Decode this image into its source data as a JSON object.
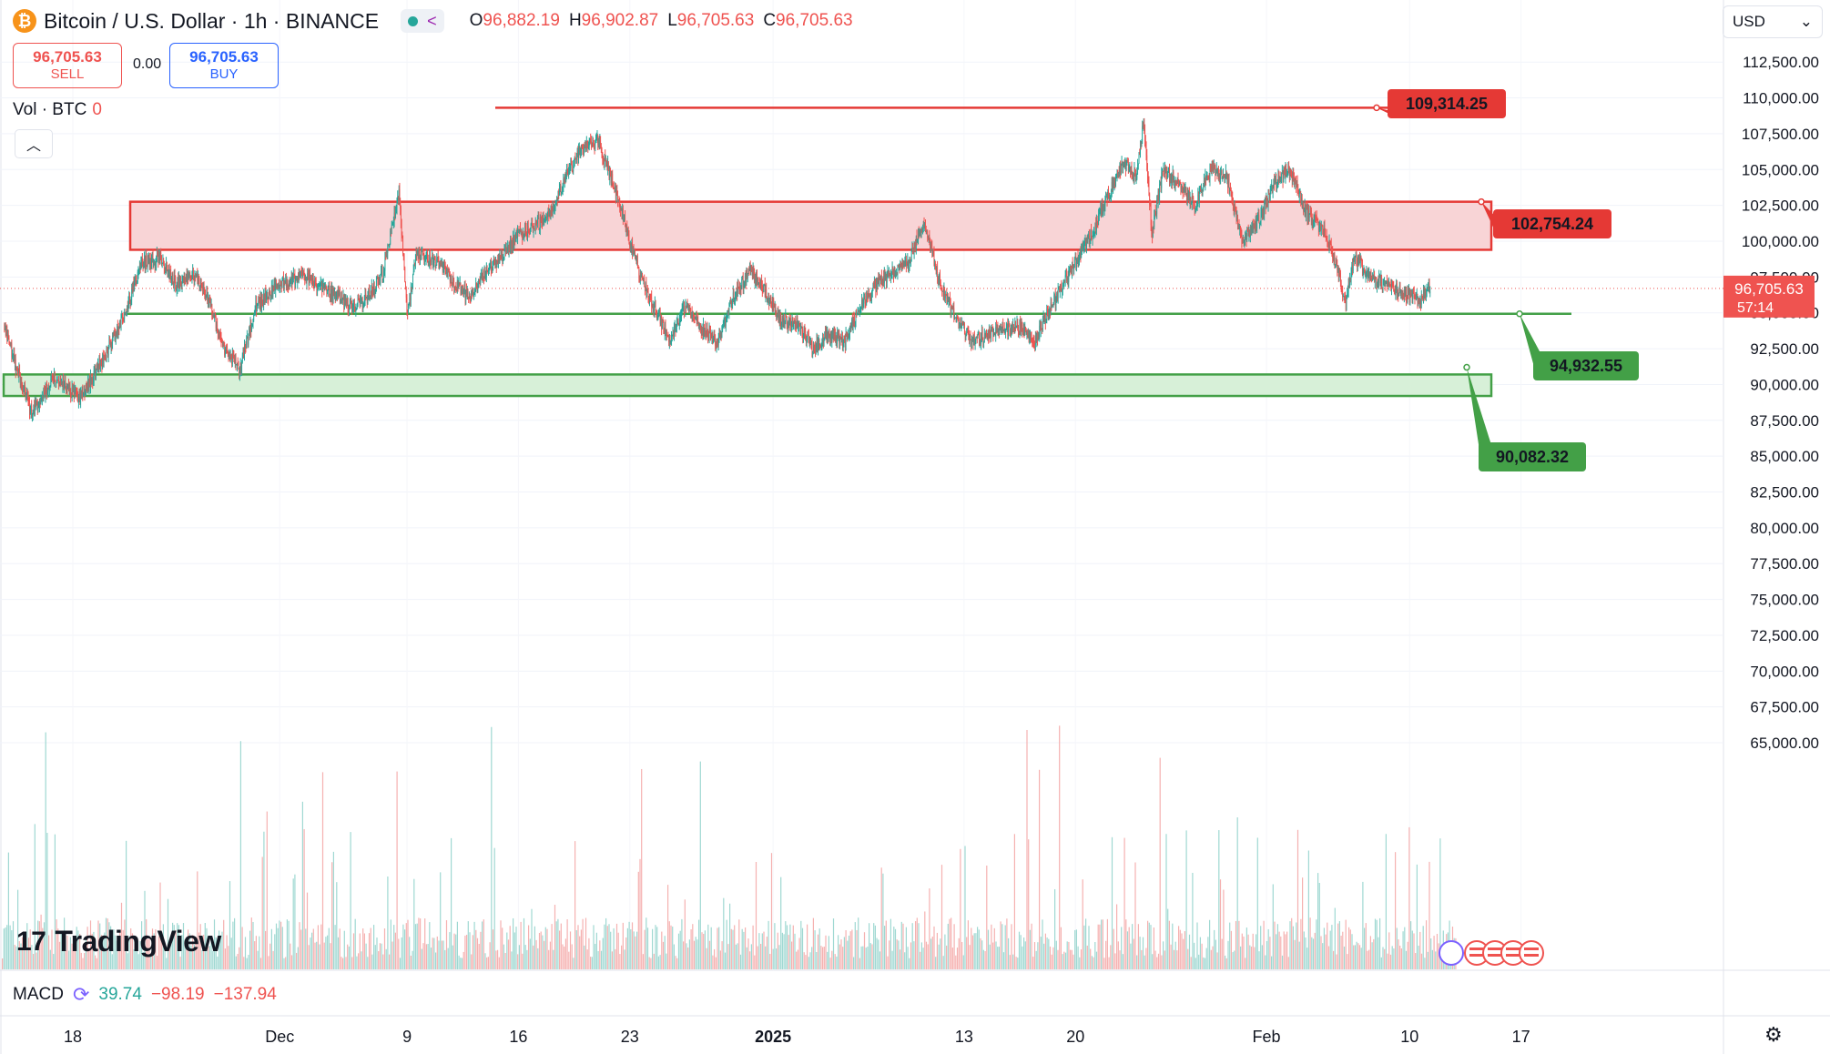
{
  "header": {
    "symbol": "Bitcoin / U.S. Dollar · 1h · BINANCE",
    "logo_glyph": "₿",
    "ohlc": [
      {
        "k": "O",
        "v": "96,882.19"
      },
      {
        "k": "H",
        "v": "96,902.87"
      },
      {
        "k": "L",
        "v": "96,705.63"
      },
      {
        "k": "C",
        "v": "96,705.63"
      }
    ]
  },
  "trade": {
    "sell_price": "96,705.63",
    "sell_label": "SELL",
    "spread": "0.00",
    "buy_price": "96,705.63",
    "buy_label": "BUY"
  },
  "volume_legend": {
    "label": "Vol · BTC",
    "value": "0"
  },
  "currency": {
    "value": "USD"
  },
  "macd": {
    "label": "MACD",
    "v1": "39.74",
    "v2": "−98.19",
    "v3": "−137.94"
  },
  "brand": {
    "name": "TradingView",
    "mark": "17"
  },
  "icons": {
    "collapse": "chevron-up-icon",
    "settings": "gear-icon",
    "share": "share-icon"
  },
  "colors": {
    "up": "#26a69a",
    "down": "#ef5350",
    "resistance": "#e53935",
    "support": "#43a047",
    "zone_red_fill": "#f8d4d6",
    "zone_green_fill": "#d7f0d8"
  },
  "chart_data": {
    "type": "candlestick",
    "timeframe": "1h",
    "ylim": [
      63800,
      114500
    ],
    "y_ticks": [
      65000,
      67500,
      70000,
      72500,
      75000,
      77500,
      80000,
      82500,
      85000,
      87500,
      90000,
      92500,
      95000,
      97500,
      100000,
      102500,
      105000,
      107500,
      110000,
      112500
    ],
    "y_tick_labels": [
      "65,000.00",
      "67,500.00",
      "70,000.00",
      "72,500.00",
      "75,000.00",
      "77,500.00",
      "80,000.00",
      "82,500.00",
      "85,000.00",
      "87,500.00",
      "90,000.00",
      "92,500.00",
      "95,000.00",
      "97,500.00",
      "100,000.00",
      "102,500.00",
      "105,000.00",
      "107,500.00",
      "110,000.00",
      "112,500.00"
    ],
    "x_ticks": [
      {
        "label": "18",
        "day": 0,
        "bold": false
      },
      {
        "label": "Dec",
        "day": 13,
        "bold": false
      },
      {
        "label": "9",
        "day": 21,
        "bold": false
      },
      {
        "label": "16",
        "day": 28,
        "bold": false
      },
      {
        "label": "23",
        "day": 35,
        "bold": false
      },
      {
        "label": "2025",
        "day": 44,
        "bold": true
      },
      {
        "label": "13",
        "day": 56,
        "bold": false
      },
      {
        "label": "20",
        "day": 63,
        "bold": false
      },
      {
        "label": "Feb",
        "day": 75,
        "bold": false
      },
      {
        "label": "10",
        "day": 84,
        "bold": false
      },
      {
        "label": "17",
        "day": 91,
        "bold": false
      }
    ],
    "price_path": [
      [
        -4.3,
        94200
      ],
      [
        -3.5,
        91000
      ],
      [
        -2.6,
        88000
      ],
      [
        -1.2,
        90500
      ],
      [
        0.5,
        89000
      ],
      [
        2,
        92000
      ],
      [
        3.3,
        95000
      ],
      [
        4.3,
        98500
      ],
      [
        5.5,
        98800
      ],
      [
        6.5,
        97000
      ],
      [
        7.5,
        97800
      ],
      [
        8.5,
        96000
      ],
      [
        9.5,
        92500
      ],
      [
        10.5,
        91000
      ],
      [
        11.5,
        95500
      ],
      [
        13,
        97000
      ],
      [
        14.5,
        97500
      ],
      [
        16,
        96500
      ],
      [
        17.5,
        95500
      ],
      [
        18.5,
        96000
      ],
      [
        19.5,
        97800
      ],
      [
        20.5,
        103500
      ],
      [
        21,
        95000
      ],
      [
        21.6,
        99000
      ],
      [
        23,
        98500
      ],
      [
        24,
        97000
      ],
      [
        25,
        96000
      ],
      [
        26,
        98000
      ],
      [
        27,
        99000
      ],
      [
        28,
        100500
      ],
      [
        29,
        101000
      ],
      [
        30,
        102000
      ],
      [
        31,
        104500
      ],
      [
        32,
        106500
      ],
      [
        33,
        107000
      ],
      [
        33.8,
        104500
      ],
      [
        34.5,
        102000
      ],
      [
        35.5,
        98000
      ],
      [
        36.5,
        95500
      ],
      [
        37.5,
        93000
      ],
      [
        38.5,
        95500
      ],
      [
        39.5,
        94000
      ],
      [
        40.5,
        93000
      ],
      [
        41.5,
        96000
      ],
      [
        42.5,
        98000
      ],
      [
        43.5,
        96500
      ],
      [
        44.5,
        94500
      ],
      [
        45.5,
        94200
      ],
      [
        46.5,
        92500
      ],
      [
        47.5,
        93500
      ],
      [
        48.5,
        93000
      ],
      [
        49.5,
        95500
      ],
      [
        50.5,
        97000
      ],
      [
        51.5,
        97800
      ],
      [
        52.5,
        98500
      ],
      [
        53.5,
        101500
      ],
      [
        54.5,
        97000
      ],
      [
        55.5,
        94500
      ],
      [
        56.5,
        93000
      ],
      [
        57.5,
        93500
      ],
      [
        58.5,
        93800
      ],
      [
        59.5,
        94000
      ],
      [
        60.5,
        93000
      ],
      [
        61,
        94500
      ],
      [
        62,
        96500
      ],
      [
        63,
        98500
      ],
      [
        64,
        100500
      ],
      [
        65,
        103000
      ],
      [
        66,
        105500
      ],
      [
        66.8,
        104500
      ],
      [
        67.3,
        108500
      ],
      [
        67.8,
        100500
      ],
      [
        68.5,
        105000
      ],
      [
        69.5,
        104000
      ],
      [
        70.5,
        102500
      ],
      [
        71.5,
        105000
      ],
      [
        72.5,
        104500
      ],
      [
        73.5,
        100000
      ],
      [
        74.5,
        101500
      ],
      [
        75.5,
        104000
      ],
      [
        76.5,
        105000
      ],
      [
        77.5,
        102000
      ],
      [
        78.5,
        101000
      ],
      [
        79.5,
        98000
      ],
      [
        80,
        95500
      ],
      [
        80.5,
        99000
      ],
      [
        81.5,
        97500
      ],
      [
        82.5,
        97000
      ],
      [
        83.5,
        96500
      ],
      [
        84.5,
        95800
      ],
      [
        85.3,
        96706
      ]
    ],
    "annotations": [
      {
        "type": "hline",
        "price": 109314.25,
        "label": "109,314.25",
        "color": "#e53935"
      },
      {
        "type": "zone",
        "top": 102754.24,
        "bottom": 99400,
        "label": "102,754.24",
        "color": "#e53935"
      },
      {
        "type": "hline",
        "price": 94932.55,
        "label": "94,932.55",
        "color": "#43a047"
      },
      {
        "type": "zone",
        "top": 90700,
        "bottom": 89200,
        "label": "90,082.32",
        "color": "#43a047"
      }
    ],
    "last_price": {
      "value": "96,705.63",
      "countdown": "57:14"
    },
    "grid": true,
    "volume_pane": true
  }
}
